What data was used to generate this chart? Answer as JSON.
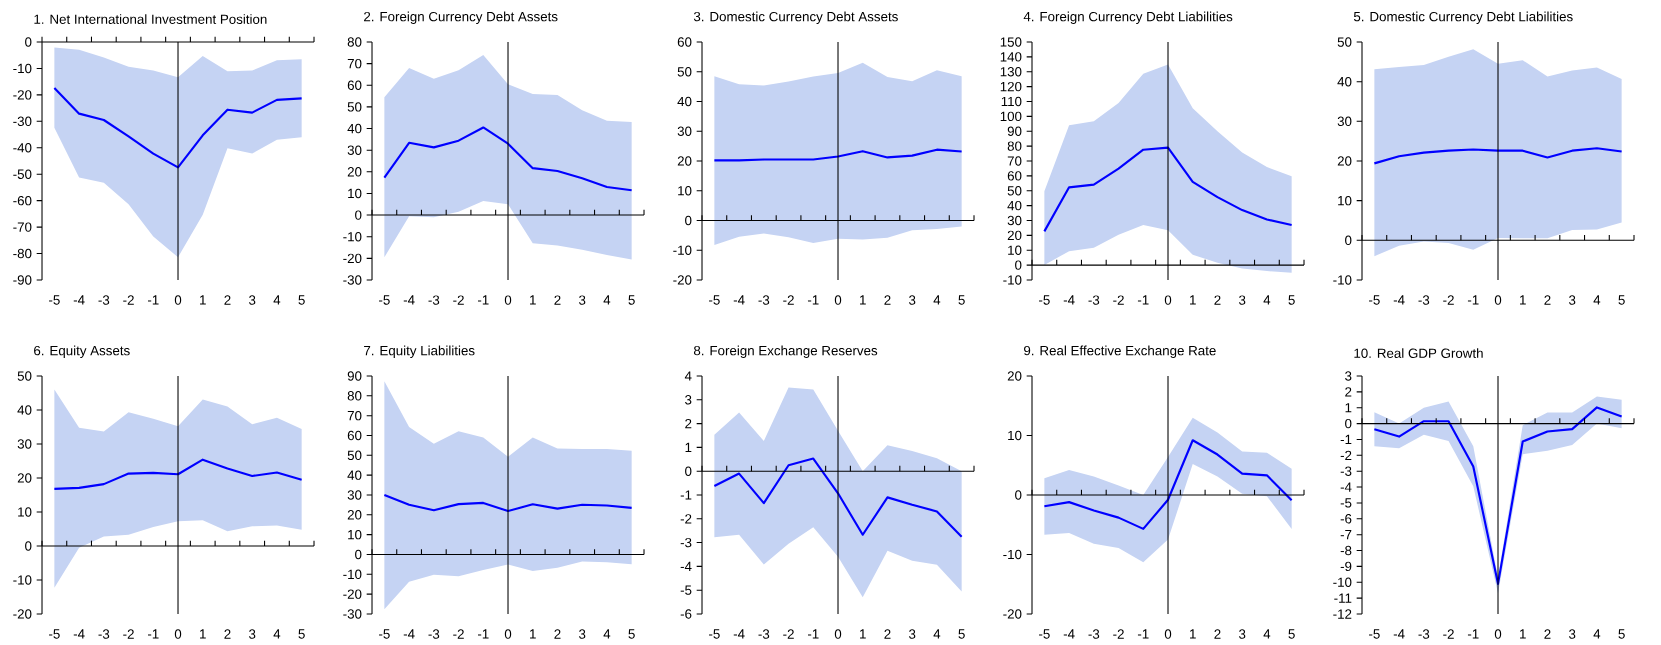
{
  "chart_data": [
    {
      "type": "line",
      "title": "1. Net International Investment Position",
      "x": [
        -5,
        -4,
        -3,
        -2,
        -1,
        0,
        1,
        2,
        3,
        4,
        5
      ],
      "xlim": [
        -5.5,
        5.5
      ],
      "xticks": [
        -5,
        -4,
        -3,
        -2,
        -1,
        0,
        1,
        2,
        3,
        4,
        5
      ],
      "ylim": [
        -90,
        0
      ],
      "yticks": [
        -90,
        -80,
        -70,
        -60,
        -50,
        -40,
        -30,
        -20,
        -10,
        0
      ],
      "ref_lines": [
        {
          "axis": "x",
          "value": 0,
          "color": "#000000"
        }
      ],
      "series": [
        {
          "color": "#0000ff",
          "values": [
            -17.4,
            -27.1,
            -29.5,
            -35.7,
            -42.2,
            -47.4,
            -35.3,
            -25.6,
            -26.7,
            -21.9,
            -21.3
          ],
          "upper": [
            -2.1,
            -2.9,
            -5.9,
            -9.4,
            -10.8,
            -13.3,
            -5.3,
            -11.1,
            -10.8,
            -6.9,
            -6.5
          ],
          "lower": [
            -32.4,
            -51.2,
            -53.2,
            -61.4,
            -73.6,
            -81.4,
            -65.3,
            -40.2,
            -42.2,
            -37.0,
            -36.0
          ]
        }
      ]
    },
    {
      "type": "line",
      "title": "2. Foreign Currency Debt Assets",
      "x": [
        -5,
        -4,
        -3,
        -2,
        -1,
        0,
        1,
        2,
        3,
        4,
        5
      ],
      "xlim": [
        -5.5,
        5.5
      ],
      "xticks": [
        -5,
        -4,
        -3,
        -2,
        -1,
        0,
        1,
        2,
        3,
        4,
        5
      ],
      "ylim": [
        -30,
        80
      ],
      "yticks": [
        -30,
        -20,
        -10,
        0,
        10,
        20,
        30,
        40,
        50,
        60,
        70,
        80
      ],
      "ref_lines": [
        {
          "axis": "x",
          "value": 0,
          "color": "#000000"
        }
      ],
      "series": [
        {
          "color": "#0000ff",
          "values": [
            17.3,
            33.4,
            31.3,
            34.4,
            40.5,
            33,
            21.7,
            20.4,
            17,
            13,
            11.5
          ],
          "upper": [
            54.5,
            68,
            63,
            67,
            74,
            60.5,
            56,
            55.5,
            48.5,
            43.6,
            43
          ],
          "lower": [
            -19.5,
            -0.5,
            -1,
            1.5,
            6.5,
            5,
            -13,
            -14,
            -16,
            -18.5,
            -20.5
          ]
        }
      ]
    },
    {
      "type": "line",
      "title": "3. Domestic Currency Debt Assets",
      "x": [
        -5,
        -4,
        -3,
        -2,
        -1,
        0,
        1,
        2,
        3,
        4,
        5
      ],
      "xlim": [
        -5.5,
        5.5
      ],
      "xticks": [
        -5,
        -4,
        -3,
        -2,
        -1,
        0,
        1,
        2,
        3,
        4,
        5
      ],
      "ylim": [
        -20,
        60
      ],
      "yticks": [
        -20,
        -10,
        0,
        10,
        20,
        30,
        40,
        50,
        60
      ],
      "ref_lines": [
        {
          "axis": "x",
          "value": 0,
          "color": "#000000"
        }
      ],
      "series": [
        {
          "color": "#0000ff",
          "values": [
            20.2,
            20.2,
            20.5,
            20.5,
            20.5,
            21.5,
            23.3,
            21.2,
            21.8,
            23.8,
            23.2
          ],
          "upper": [
            48.5,
            45.8,
            45.4,
            46.7,
            48.4,
            49.6,
            53,
            48.2,
            46.8,
            50.5,
            48.5
          ],
          "lower": [
            -8.2,
            -5.5,
            -4.4,
            -5.6,
            -7.6,
            -6.1,
            -6.4,
            -5.8,
            -3.3,
            -2.9,
            -2
          ]
        }
      ]
    },
    {
      "type": "line",
      "title": "4. Foreign Currency Debt Liabilities",
      "x": [
        -5,
        -4,
        -3,
        -2,
        -1,
        0,
        1,
        2,
        3,
        4,
        5
      ],
      "xlim": [
        -5.5,
        5.5
      ],
      "xticks": [
        -5,
        -4,
        -3,
        -2,
        -1,
        0,
        1,
        2,
        3,
        4,
        5
      ],
      "ylim": [
        -10,
        150
      ],
      "yticks": [
        -10,
        0,
        10,
        20,
        30,
        40,
        50,
        60,
        70,
        80,
        90,
        100,
        110,
        120,
        130,
        140,
        150
      ],
      "ref_lines": [
        {
          "axis": "x",
          "value": 0,
          "color": "#000000"
        }
      ],
      "series": [
        {
          "color": "#0000ff",
          "values": [
            22.7,
            52.3,
            54.1,
            64.9,
            77.6,
            79,
            56,
            45.7,
            37,
            30.7,
            27
          ],
          "upper": [
            49.7,
            94,
            96.8,
            109,
            128.7,
            134.8,
            105.5,
            90,
            75.7,
            65.9,
            59.8
          ],
          "lower": [
            0,
            9.4,
            11.7,
            20.4,
            27,
            23.4,
            7,
            1.6,
            -2.3,
            -4,
            -5.2
          ]
        }
      ]
    },
    {
      "type": "line",
      "title": "5. Domestic Currency Debt Liabilities",
      "x": [
        -5,
        -4,
        -3,
        -2,
        -1,
        0,
        1,
        2,
        3,
        4,
        5
      ],
      "xlim": [
        -5.5,
        5.5
      ],
      "xticks": [
        -5,
        -4,
        -3,
        -2,
        -1,
        0,
        1,
        2,
        3,
        4,
        5
      ],
      "ylim": [
        -10,
        50
      ],
      "yticks": [
        -10,
        0,
        10,
        20,
        30,
        40,
        50
      ],
      "ref_lines": [
        {
          "axis": "x",
          "value": 0,
          "color": "#000000"
        }
      ],
      "series": [
        {
          "color": "#0000ff",
          "values": [
            19.4,
            21.2,
            22.1,
            22.6,
            22.9,
            22.6,
            22.6,
            20.9,
            22.6,
            23.2,
            22.4
          ],
          "upper": [
            43.1,
            43.7,
            44.2,
            46.3,
            48.2,
            44.5,
            45.4,
            41.3,
            42.8,
            43.6,
            40.7
          ],
          "lower": [
            -4,
            -1.4,
            -0.3,
            -0.7,
            -2.4,
            0.6,
            0.5,
            0.5,
            2.6,
            2.7,
            4.5
          ]
        }
      ]
    },
    {
      "type": "line",
      "title": "6. Equity Assets",
      "x": [
        -5,
        -4,
        -3,
        -2,
        -1,
        0,
        1,
        2,
        3,
        4,
        5
      ],
      "xlim": [
        -5.5,
        5.5
      ],
      "xticks": [
        -5,
        -4,
        -3,
        -2,
        -1,
        0,
        1,
        2,
        3,
        4,
        5
      ],
      "ylim": [
        -20,
        50
      ],
      "yticks": [
        -20,
        -10,
        0,
        10,
        20,
        30,
        40,
        50
      ],
      "ref_lines": [
        {
          "axis": "x",
          "value": 0,
          "color": "#000000"
        }
      ],
      "series": [
        {
          "color": "#0000ff",
          "values": [
            16.8,
            17.1,
            18.2,
            21.3,
            21.5,
            21.1,
            25.4,
            22.8,
            20.6,
            21.6,
            19.5
          ],
          "upper": [
            46,
            34.8,
            33.7,
            39.3,
            37.4,
            35.2,
            43.1,
            41,
            35.8,
            37.7,
            34.4
          ],
          "lower": [
            -12.3,
            -0.5,
            2.8,
            3.3,
            5.6,
            7.3,
            7.6,
            4.3,
            5.8,
            6,
            4.8
          ]
        }
      ]
    },
    {
      "type": "line",
      "title": "7. Equity Liabilities",
      "x": [
        -5,
        -4,
        -3,
        -2,
        -1,
        0,
        1,
        2,
        3,
        4,
        5
      ],
      "xlim": [
        -5.5,
        5.5
      ],
      "xticks": [
        -5,
        -4,
        -3,
        -2,
        -1,
        0,
        1,
        2,
        3,
        4,
        5
      ],
      "ylim": [
        -30,
        90
      ],
      "yticks": [
        -30,
        -20,
        -10,
        0,
        10,
        20,
        30,
        40,
        50,
        60,
        70,
        80,
        90
      ],
      "ref_lines": [
        {
          "axis": "x",
          "value": 0,
          "color": "#000000"
        }
      ],
      "series": [
        {
          "color": "#0000ff",
          "values": [
            30,
            25.1,
            22.3,
            25.4,
            26,
            21.9,
            25.3,
            23.1,
            25.1,
            24.7,
            23.5
          ],
          "upper": [
            87.3,
            64.3,
            55.8,
            62.2,
            59,
            49.3,
            59,
            53.4,
            53.2,
            53.2,
            52.3
          ],
          "lower": [
            -27.6,
            -13.8,
            -10.2,
            -11,
            -7.8,
            -5.1,
            -8.3,
            -6.7,
            -3.5,
            -3.9,
            -4.9
          ]
        }
      ]
    },
    {
      "type": "line",
      "title": "8. Foreign Exchange Reserves",
      "x": [
        -5,
        -4,
        -3,
        -2,
        -1,
        0,
        1,
        2,
        3,
        4,
        5
      ],
      "xlim": [
        -5.5,
        5.5
      ],
      "xticks": [
        -5,
        -4,
        -3,
        -2,
        -1,
        0,
        1,
        2,
        3,
        4,
        5
      ],
      "ylim": [
        -6,
        4
      ],
      "yticks": [
        -6,
        -5,
        -4,
        -3,
        -2,
        -1,
        0,
        1,
        2,
        3,
        4
      ],
      "ref_lines": [
        {
          "axis": "x",
          "value": 0,
          "color": "#000000"
        }
      ],
      "series": [
        {
          "color": "#0000ff",
          "values": [
            -0.62,
            -0.1,
            -1.34,
            0.25,
            0.53,
            -0.93,
            -2.67,
            -1.1,
            -1.41,
            -1.69,
            -2.75
          ],
          "upper": [
            1.53,
            2.47,
            1.27,
            3.52,
            3.43,
            1.7,
            0,
            1.09,
            0.85,
            0.54,
            0
          ],
          "lower": [
            -2.78,
            -2.67,
            -3.92,
            -3.05,
            -2.36,
            -3.6,
            -5.3,
            -3.34,
            -3.76,
            -3.93,
            -5.05
          ]
        }
      ]
    },
    {
      "type": "line",
      "title": "9. Real Effective Exchange Rate",
      "x": [
        -5,
        -4,
        -3,
        -2,
        -1,
        0,
        1,
        2,
        3,
        4,
        5
      ],
      "xlim": [
        -5.5,
        5.5
      ],
      "xticks": [
        -5,
        -4,
        -3,
        -2,
        -1,
        0,
        1,
        2,
        3,
        4,
        5
      ],
      "ylim": [
        -20,
        20
      ],
      "yticks": [
        -20,
        -10,
        0,
        10,
        20
      ],
      "ref_lines": [
        {
          "axis": "x",
          "value": 0,
          "color": "#000000"
        }
      ],
      "series": [
        {
          "color": "#0000ff",
          "values": [
            -1.9,
            -1.2,
            -2.6,
            -3.8,
            -5.7,
            -0.8,
            9.2,
            6.8,
            3.6,
            3.3,
            -0.9
          ],
          "upper": [
            2.8,
            4.2,
            3.1,
            1.6,
            0,
            6.4,
            13,
            10.5,
            7.3,
            7.1,
            4.4
          ],
          "lower": [
            -6.7,
            -6.4,
            -8.2,
            -8.9,
            -11.3,
            -7.5,
            5.2,
            3.1,
            0.2,
            -0.2,
            -5.7
          ]
        }
      ]
    },
    {
      "type": "line",
      "title": "10. Real GDP Growth",
      "x": [
        -5,
        -4,
        -3,
        -2,
        -1,
        0,
        1,
        2,
        3,
        4,
        5
      ],
      "xlim": [
        -5.5,
        5.5
      ],
      "xticks": [
        -5,
        -4,
        -3,
        -2,
        -1,
        0,
        1,
        2,
        3,
        4,
        5
      ],
      "ylim": [
        -12,
        3
      ],
      "yticks": [
        -12,
        -11,
        -10,
        -9,
        -8,
        -7,
        -6,
        -5,
        -4,
        -3,
        -2,
        -1,
        0,
        1,
        2,
        3
      ],
      "ref_lines": [
        {
          "axis": "x",
          "value": 0,
          "color": "#000000"
        }
      ],
      "series": [
        {
          "color": "#0000ff",
          "values": [
            -0.35,
            -0.82,
            0.15,
            0.15,
            -2.7,
            -10.1,
            -1.13,
            -0.5,
            -0.35,
            1.02,
            0.45
          ],
          "upper": [
            0.72,
            0,
            1.0,
            1.39,
            -1.43,
            -9.7,
            -0.1,
            0.7,
            0.7,
            1.7,
            1.5
          ],
          "lower": [
            -1.43,
            -1.56,
            -0.7,
            -1.1,
            -3.95,
            -10.7,
            -1.93,
            -1.71,
            -1.35,
            0,
            -0.3
          ]
        }
      ]
    }
  ]
}
